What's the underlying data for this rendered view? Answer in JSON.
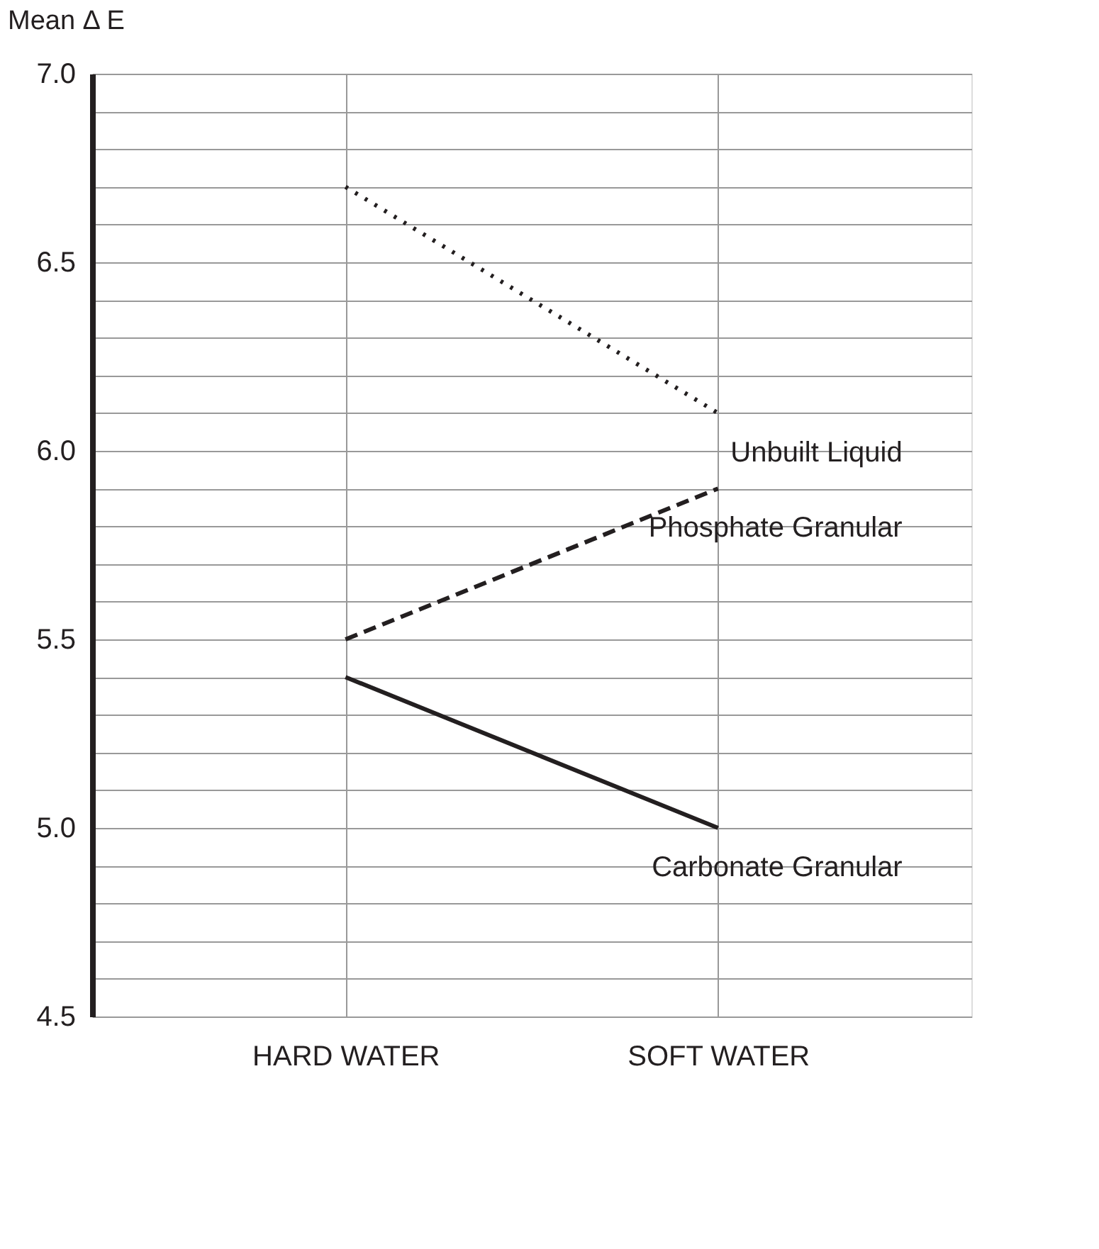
{
  "chart_data": {
    "type": "line",
    "ylabel": "Mean Δ E",
    "categories": [
      "HARD WATER",
      "SOFT WATER"
    ],
    "series": [
      {
        "name": "Unbuilt Liquid",
        "color": "#231f20",
        "line_style": "dotted",
        "values": [
          6.7,
          6.1
        ]
      },
      {
        "name": "Phosphate Granular",
        "color": "#231f20",
        "line_style": "dashed",
        "values": [
          5.5,
          5.9
        ]
      },
      {
        "name": "Carbonate Granular",
        "color": "#231f20",
        "line_style": "solid",
        "values": [
          5.4,
          5.0
        ]
      }
    ],
    "ylim": [
      4.5,
      7.0
    ],
    "yticks": [
      4.5,
      {
        "value": 4.6,
        "label": null
      },
      {
        "value": 4.7,
        "label": null
      },
      {
        "value": 4.8,
        "label": null
      },
      {
        "value": 4.9,
        "label": null
      },
      {
        "value": 5.0,
        "label": "5.0"
      },
      {
        "value": 5.1,
        "label": null
      },
      {
        "value": 5.2,
        "label": null
      },
      {
        "value": 5.3,
        "label": null
      },
      {
        "value": 5.4,
        "label": null
      },
      5.5,
      {
        "value": 5.6,
        "label": null
      },
      {
        "value": 5.7,
        "label": null
      },
      {
        "value": 5.8,
        "label": null
      },
      {
        "value": 5.9,
        "label": null
      },
      {
        "value": 6.0,
        "label": "6.0"
      },
      {
        "value": 6.1,
        "label": null
      },
      {
        "value": 6.2,
        "label": null
      },
      {
        "value": 6.3,
        "label": null
      },
      {
        "value": 6.4,
        "label": null
      },
      6.5,
      {
        "value": 6.6,
        "label": null
      },
      {
        "value": 6.7,
        "label": null
      },
      {
        "value": 6.8,
        "label": null
      },
      {
        "value": 6.9,
        "label": null
      },
      {
        "value": 7.0,
        "label": "7.0"
      }
    ],
    "grid": true,
    "legend": false,
    "marker": "none"
  }
}
